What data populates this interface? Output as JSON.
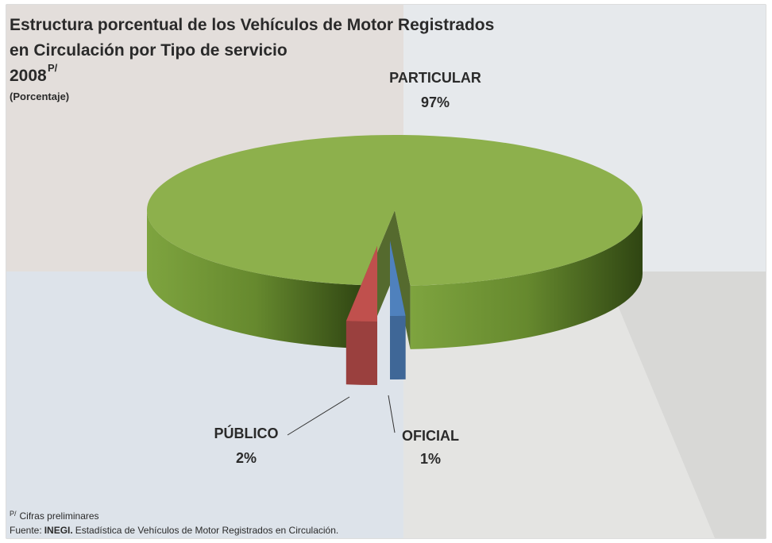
{
  "chart_data": {
    "type": "pie3d",
    "title": [
      "Estructura porcentual de  los Vehículos de Motor  Registrados",
      "en Circulación por Tipo de servicio"
    ],
    "year": "2008",
    "year_superscript": "P/",
    "subtitle": "(Porcentaje)",
    "categories": [
      "PARTICULAR",
      "PÚBLICO",
      "OFICIAL"
    ],
    "values": [
      97,
      2,
      1
    ],
    "value_labels": [
      "97%",
      "2%",
      "1%"
    ],
    "colors": [
      "#8db04c",
      "#c0504d",
      "#4f81bd"
    ],
    "footnote": {
      "mark": "P/",
      "text": "Cifras preliminares"
    },
    "source": {
      "label": "Fuente:",
      "org": "INEGI.",
      "text": "Estadística de Vehículos de Motor Registrados en Circulación."
    }
  }
}
